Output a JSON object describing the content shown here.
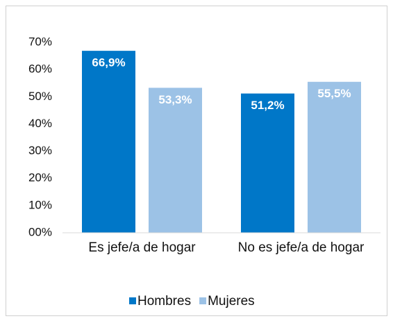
{
  "chart_data": {
    "type": "bar",
    "categories": [
      "Es jefe/a de hogar",
      "No es jefe/a de hogar"
    ],
    "series": [
      {
        "name": "Hombres",
        "color": "#0077c8",
        "values": [
          66.9,
          51.2
        ],
        "value_labels": [
          "66,9%",
          "51,2%"
        ]
      },
      {
        "name": "Mujeres",
        "color": "#9cc2e6",
        "values": [
          53.3,
          55.5
        ],
        "value_labels": [
          "53,3%",
          "55,5%"
        ]
      }
    ],
    "ylim": [
      0,
      70
    ],
    "yticks": [
      {
        "value": 0,
        "label": "00%"
      },
      {
        "value": 10,
        "label": "10%"
      },
      {
        "value": 20,
        "label": "20%"
      },
      {
        "value": 30,
        "label": "30%"
      },
      {
        "value": 40,
        "label": "40%"
      },
      {
        "value": 50,
        "label": "50%"
      },
      {
        "value": 60,
        "label": "60%"
      },
      {
        "value": 70,
        "label": "70%"
      }
    ],
    "grid": false,
    "legend": "bottom"
  }
}
